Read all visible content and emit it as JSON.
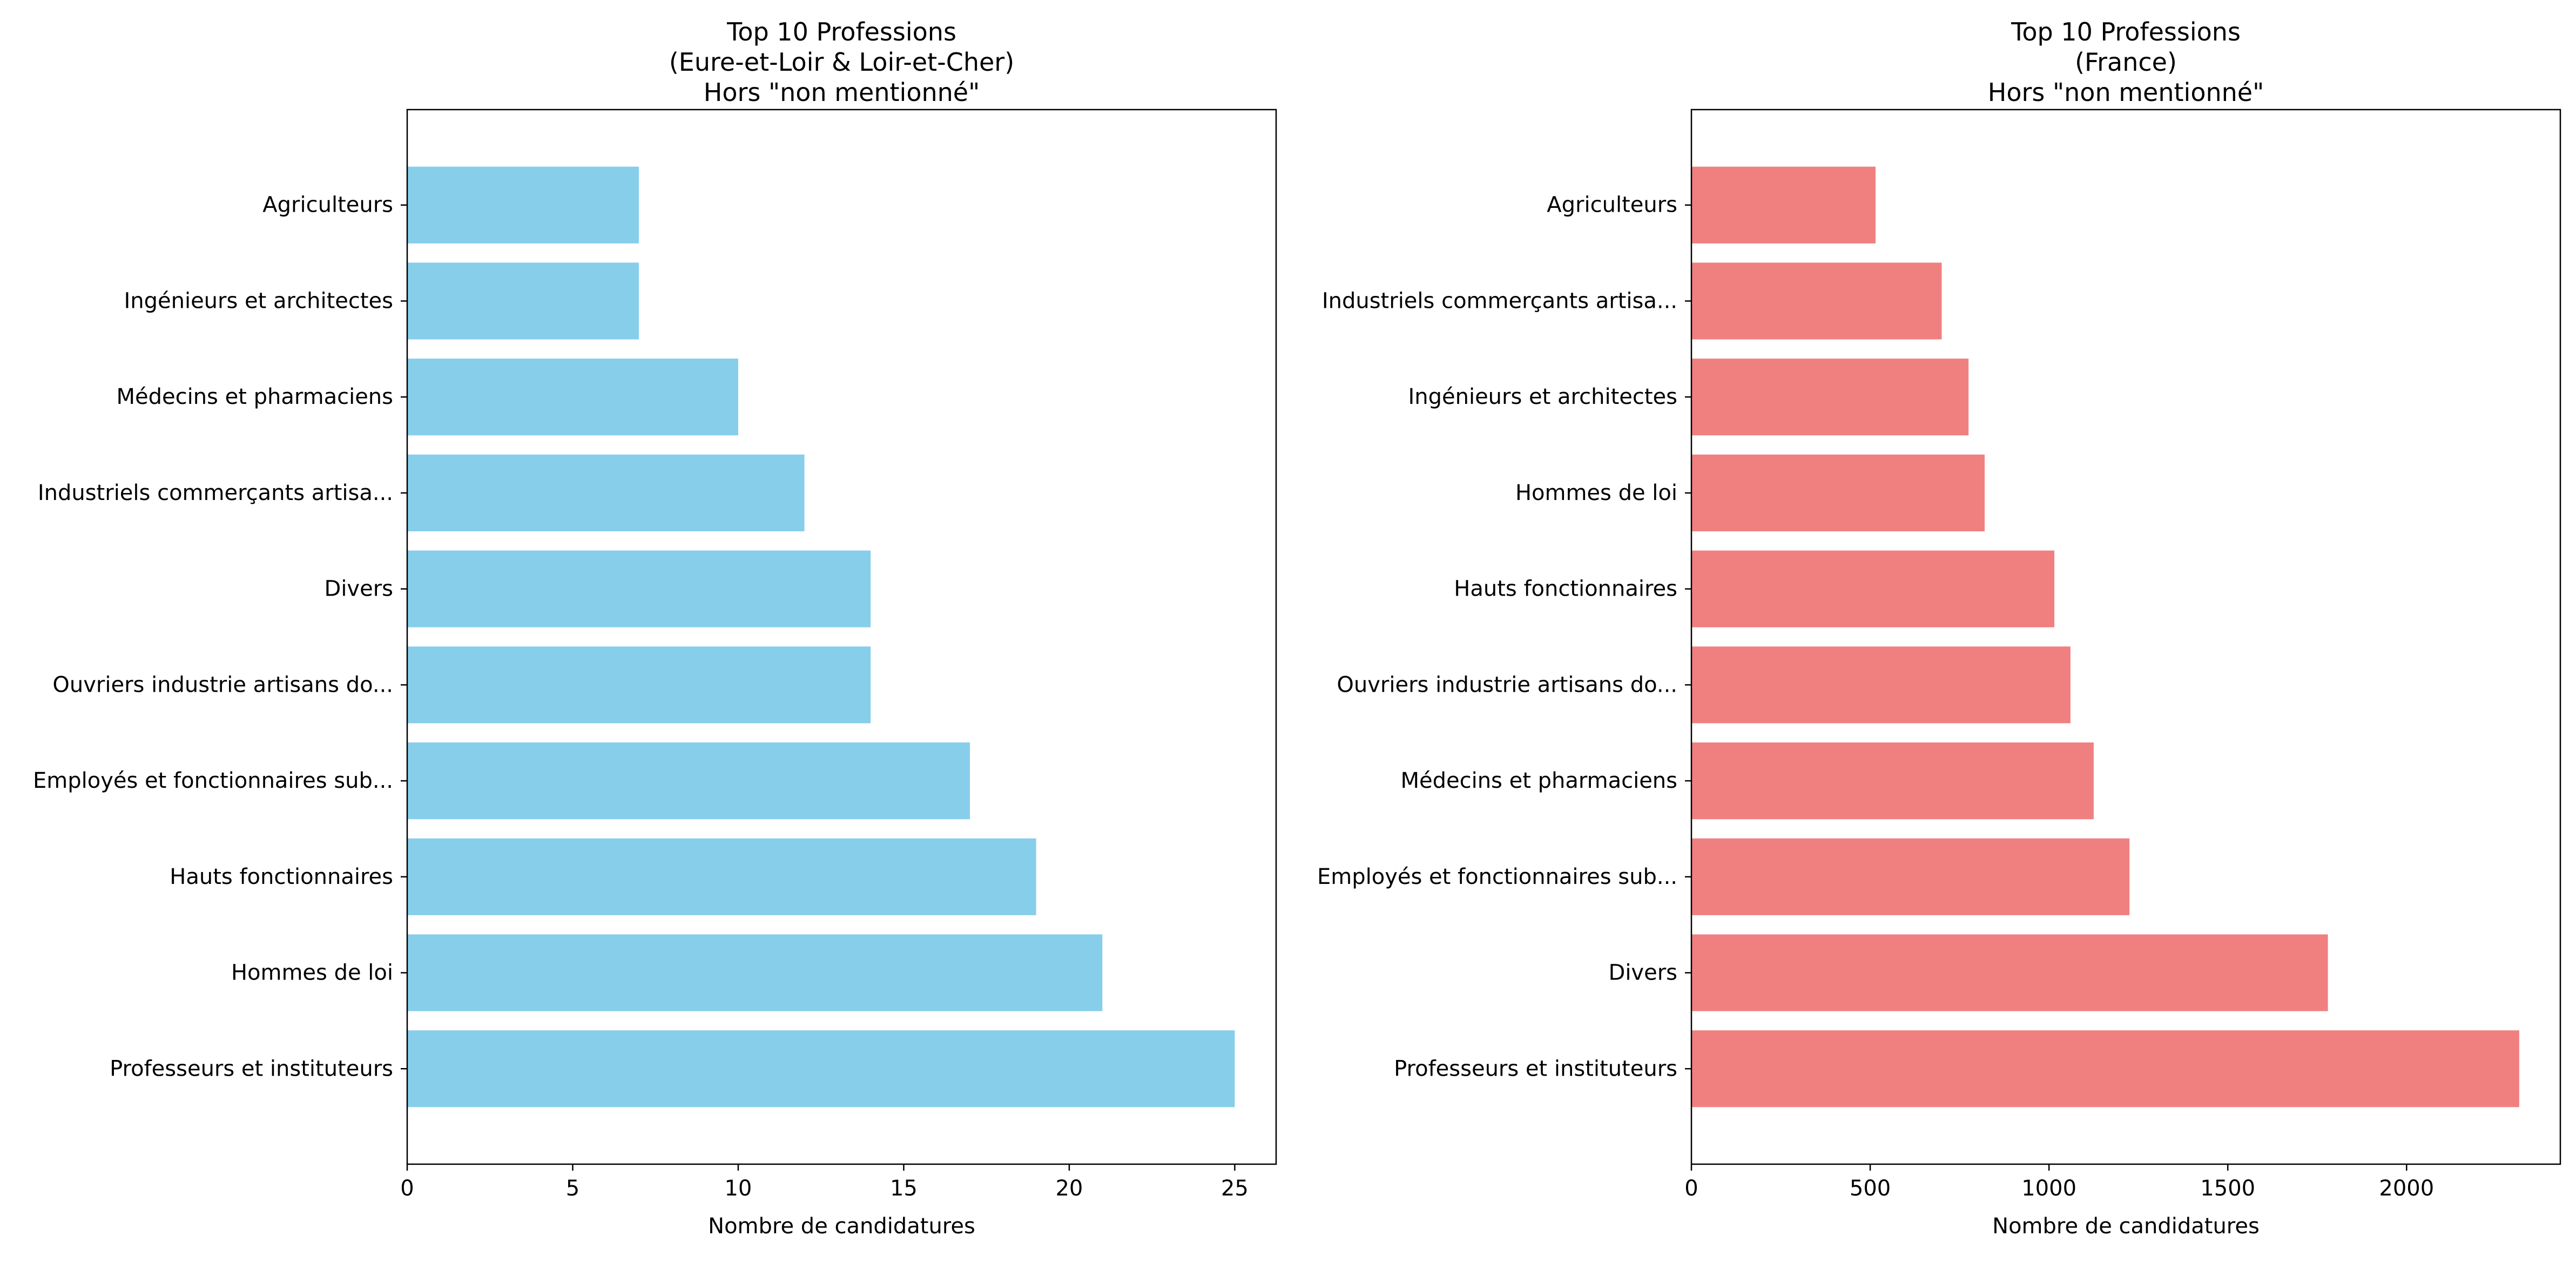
{
  "chart_data": [
    {
      "type": "bar",
      "orientation": "horizontal",
      "title_lines": [
        "Top 10 Professions",
        "(Eure-et-Loir & Loir-et-Cher)",
        "Hors \"non mentionné\""
      ],
      "xlabel": "Nombre de candidatures",
      "ylabel": "",
      "xlim": [
        0,
        26.25
      ],
      "xticks": [
        0,
        5,
        10,
        15,
        20,
        25
      ],
      "color": "#87ceeb",
      "categories": [
        "Professeurs et instituteurs",
        "Hommes de loi",
        "Hauts fonctionnaires",
        "Employés et fonctionnaires sub...",
        "Ouvriers industrie artisans do...",
        "Divers",
        "Industriels commerçants artisa...",
        "Médecins et pharmaciens",
        "Ingénieurs et architectes",
        "Agriculteurs"
      ],
      "values": [
        25,
        21,
        19,
        17,
        14,
        14,
        12,
        10,
        7,
        7
      ],
      "grid": false
    },
    {
      "type": "bar",
      "orientation": "horizontal",
      "title_lines": [
        "Top 10 Professions",
        "(France)",
        "Hors \"non mentionné\""
      ],
      "xlabel": "Nombre de candidatures",
      "ylabel": "",
      "xlim": [
        0,
        2430
      ],
      "xticks": [
        0,
        500,
        1000,
        1500,
        2000
      ],
      "color": "#f08080",
      "categories": [
        "Professeurs et instituteurs",
        "Divers",
        "Employés et fonctionnaires sub...",
        "Médecins et pharmaciens",
        "Ouvriers industrie artisans do...",
        "Hauts fonctionnaires",
        "Hommes de loi",
        "Ingénieurs et architectes",
        "Industriels commerçants artisa...",
        "Agriculteurs"
      ],
      "values": [
        2315,
        1780,
        1225,
        1125,
        1060,
        1015,
        820,
        775,
        700,
        515
      ],
      "grid": false
    }
  ]
}
